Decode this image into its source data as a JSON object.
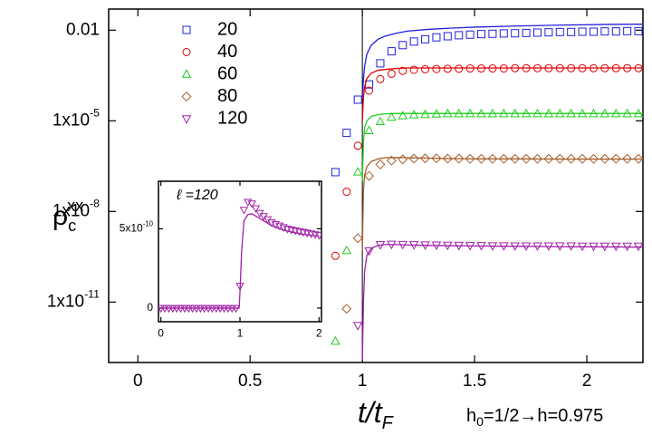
{
  "chart_data": [
    {
      "type": "scatter",
      "xlabel": {
        "text": "t/t",
        "sub": "F"
      },
      "ylabel": {
        "text": "ρ",
        "sub": "c",
        "sup": "xx"
      },
      "annotation": {
        "text": "h",
        "sub": "0",
        "tail": "=1/2→h=0.975"
      },
      "xlim": [
        -0.13,
        2.25
      ],
      "ylim": [
        1e-13,
        0.05
      ],
      "yscale": "log",
      "xticks": [
        0,
        0.5,
        1,
        1.5,
        2
      ],
      "yticks": [
        0.01,
        {
          "value": 1e-05,
          "label": "1x10",
          "sup": "-5"
        },
        {
          "value": 1e-08,
          "label": "1x10",
          "sup": "-8"
        },
        {
          "value": 1e-11,
          "label": "1x10",
          "sup": "-11"
        }
      ],
      "vline": 1,
      "legend": "upper left",
      "x": [
        0.88,
        0.93,
        0.98,
        1.03,
        1.08,
        1.13,
        1.18,
        1.23,
        1.28,
        1.33,
        1.38,
        1.43,
        1.48,
        1.53,
        1.58,
        1.63,
        1.68,
        1.73,
        1.78,
        1.83,
        1.88,
        1.93,
        1.98,
        2.03,
        2.08,
        2.13,
        2.18,
        2.23
      ],
      "fit_x": [
        1.0,
        1.005,
        1.01,
        1.02,
        1.04,
        1.07,
        1.1,
        1.15,
        1.2,
        1.3,
        1.4,
        1.5,
        1.7,
        1.9,
        2.1,
        2.25
      ],
      "series": [
        {
          "name": "20",
          "color": "#2020e0",
          "marker": "square",
          "values": [
            2e-07,
            4e-06,
            5e-05,
            0.00016,
            0.0008,
            0.002,
            0.0032,
            0.0042,
            0.005,
            0.0058,
            0.0063,
            0.0068,
            0.0071,
            0.0074,
            0.0076,
            0.0078,
            0.0079,
            0.0081,
            0.0083,
            0.0085,
            0.0087,
            0.0087,
            0.0089,
            0.0089,
            0.0091,
            0.0091,
            0.0093,
            0.0093
          ],
          "fit_values": [
            5e-05,
            0.00025,
            0.00063,
            0.0016,
            0.0032,
            0.005,
            0.0063,
            0.0079,
            0.0093,
            0.0107,
            0.0117,
            0.0126,
            0.0138,
            0.0148,
            0.0155,
            0.0158
          ]
        },
        {
          "name": "40",
          "color": "#e00000",
          "marker": "circle",
          "values": [
            3.4e-10,
            4.5e-08,
            1.5e-06,
            0.0001,
            0.00024,
            0.00036,
            0.00045,
            0.00049,
            0.00051,
            0.00052,
            0.00053,
            0.00053,
            0.00054,
            0.00054,
            0.00054,
            0.00054,
            0.00055,
            0.00055,
            0.00055,
            0.00055,
            0.00055,
            0.00055,
            0.00055,
            0.00055,
            0.00055,
            0.00055,
            0.00055,
            0.00055
          ],
          "fit_values": [
            1e-05,
            6.3e-05,
            0.00013,
            0.00025,
            0.00038,
            0.00047,
            0.0005,
            0.00054,
            0.00056,
            0.00056,
            0.00056,
            0.00056,
            0.00056,
            0.00056,
            0.00056,
            0.00056
          ]
        },
        {
          "name": "60",
          "color": "#20cc20",
          "marker": "triangle-up",
          "values": [
            5e-13,
            5e-10,
            2e-07,
            4.7e-06,
            9.3e-06,
            1.3e-05,
            1.45e-05,
            1.55e-05,
            1.6e-05,
            1.65e-05,
            1.7e-05,
            1.7e-05,
            1.7e-05,
            1.7e-05,
            1.7e-05,
            1.7e-05,
            1.7e-05,
            1.7e-05,
            1.7e-05,
            1.7e-05,
            1.7e-05,
            1.7e-05,
            1.7e-05,
            1.7e-05,
            1.7e-05,
            1.7e-05,
            1.7e-05,
            1.7e-05
          ],
          "fit_values": [
            1e-07,
            2e-06,
            6e-06,
            1e-05,
            1.4e-05,
            1.6e-05,
            1.7e-05,
            1.75e-05,
            1.75e-05,
            1.75e-05,
            1.75e-05,
            1.75e-05,
            1.75e-05,
            1.75e-05,
            1.75e-05,
            1.75e-05
          ]
        },
        {
          "name": "80",
          "color": "#a8602c",
          "marker": "diamond",
          "values": [
            null,
            6e-12,
            1.3e-09,
            1.5e-07,
            3.6e-07,
            4.8e-07,
            5.3e-07,
            5.6e-07,
            5.7e-07,
            5.7e-07,
            5.6e-07,
            5.6e-07,
            5.5e-07,
            5.5e-07,
            5.5e-07,
            5.5e-07,
            5.5e-07,
            5.5e-07,
            5.5e-07,
            5.5e-07,
            5.5e-07,
            5.5e-07,
            5.5e-07,
            5.5e-07,
            5.5e-07,
            5.5e-07,
            5.5e-07,
            5.5e-07
          ],
          "fit_values": [
            5e-10,
            5e-08,
            1.6e-07,
            3e-07,
            4.5e-07,
            5.5e-07,
            6e-07,
            6.1e-07,
            6e-07,
            5.8e-07,
            5.6e-07,
            5.5e-07,
            5.5e-07,
            5.4e-07,
            5.4e-07,
            5.4e-07
          ]
        },
        {
          "name": "120",
          "color": "#a020a8",
          "marker": "triangle-down",
          "values": [
            null,
            null,
            1.7e-12,
            5e-10,
            8e-10,
            8.3e-10,
            8.2e-10,
            8e-10,
            7.9e-10,
            7.8e-10,
            7.7e-10,
            7.6e-10,
            7.5e-10,
            7.5e-10,
            7.4e-10,
            7.4e-10,
            7.3e-10,
            7.3e-10,
            7.3e-10,
            7.3e-10,
            7.3e-10,
            7.3e-10,
            7.2e-10,
            7.2e-10,
            7.2e-10,
            7.2e-10,
            7.2e-10,
            7.2e-10
          ],
          "fit_values": [
            1.2e-13,
            1e-11,
            1e-10,
            3.5e-10,
            6e-10,
            7.5e-10,
            8e-10,
            8e-10,
            7.8e-10,
            7.5e-10,
            7.3e-10,
            7.2e-10,
            7e-10,
            6.8e-10,
            6.7e-10,
            6.6e-10
          ]
        }
      ]
    },
    {
      "type": "scatter",
      "label": "ℓ =120",
      "xlim": [
        -0.03,
        2.03
      ],
      "ylim": [
        -8.6e-11,
        8e-10
      ],
      "xticks": [
        0,
        1,
        2
      ],
      "yticks": [
        0,
        {
          "value": 5e-10,
          "label": "5x10",
          "sup": "-10"
        }
      ],
      "x": [
        0,
        0.05,
        0.1,
        0.15,
        0.2,
        0.25,
        0.3,
        0.35,
        0.4,
        0.45,
        0.5,
        0.55,
        0.6,
        0.65,
        0.7,
        0.75,
        0.8,
        0.85,
        0.9,
        0.95,
        1.0,
        1.05,
        1.1,
        1.15,
        1.2,
        1.25,
        1.3,
        1.35,
        1.4,
        1.45,
        1.5,
        1.55,
        1.6,
        1.65,
        1.7,
        1.75,
        1.8,
        1.85,
        1.9,
        1.95,
        2.0
      ],
      "fit_x": [
        0,
        0.99,
        1.0,
        1.02,
        1.05,
        1.1,
        1.15,
        1.2,
        1.3,
        1.4,
        1.5,
        1.6,
        1.7,
        1.8,
        1.9,
        2.0
      ],
      "series": [
        {
          "color": "#a020a8",
          "marker": "triangle-down",
          "values": [
            0,
            0,
            0,
            0,
            0,
            0,
            0,
            0,
            0,
            0,
            0,
            0,
            0,
            0,
            0,
            0,
            0,
            0,
            0,
            0,
            1.4e-10,
            6.2e-10,
            6.7e-10,
            6.6e-10,
            6.3e-10,
            6e-10,
            5.8e-10,
            5.6e-10,
            5.4e-10,
            5.3e-10,
            5.2e-10,
            5.1e-10,
            5e-10,
            4.95e-10,
            4.9e-10,
            4.85e-10,
            4.8e-10,
            4.75e-10,
            4.7e-10,
            4.65e-10,
            4.6e-10
          ],
          "fit_values": [
            0,
            0,
            1e-10,
            3.5e-10,
            5.5e-10,
            5.9e-10,
            5.95e-10,
            5.8e-10,
            5.5e-10,
            5.2e-10,
            5e-10,
            4.85e-10,
            4.75e-10,
            4.65e-10,
            4.6e-10,
            4.55e-10
          ]
        }
      ]
    }
  ]
}
